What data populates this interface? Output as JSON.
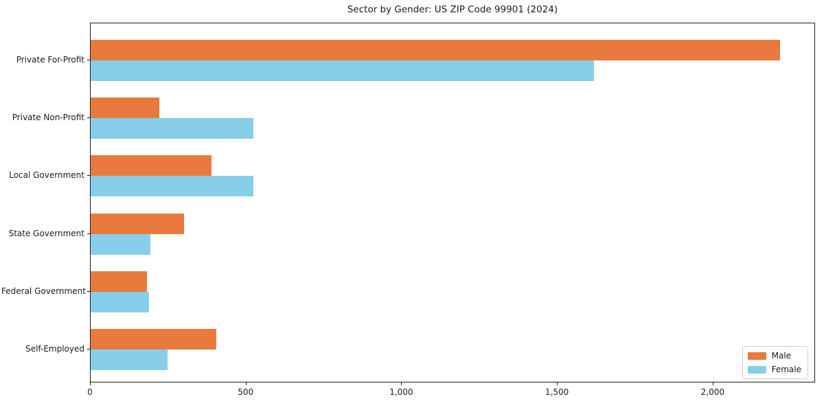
{
  "chart_data": {
    "type": "bar",
    "orientation": "horizontal",
    "title": "Sector by Gender: US ZIP Code 99901 (2024)",
    "categories": [
      "Private For-Profit",
      "Private Non-Profit",
      "Local Government",
      "State Government",
      "Federal Government",
      "Self-Employed"
    ],
    "series": [
      {
        "name": "Male",
        "color": "#e87a3d",
        "values": [
          2218,
          222,
          388,
          300,
          181,
          404
        ]
      },
      {
        "name": "Female",
        "color": "#87ceeb",
        "values": [
          1619,
          524,
          524,
          192,
          187,
          247
        ]
      }
    ],
    "xlabel": "",
    "ylabel": "",
    "xlim": [
      0,
      2329
    ],
    "xticks": [
      0,
      500,
      1000,
      1500,
      2000
    ],
    "xtick_labels": [
      "0",
      "500",
      "1,000",
      "1,500",
      "2,000"
    ],
    "grid": false,
    "legend_position": "lower right",
    "colors": {
      "male": "#e87a3d",
      "female": "#87ceeb",
      "spine": "#1a1a1a",
      "text": "#1a1a1a",
      "legend_border": "#cccccc",
      "background": "#ffffff"
    }
  }
}
